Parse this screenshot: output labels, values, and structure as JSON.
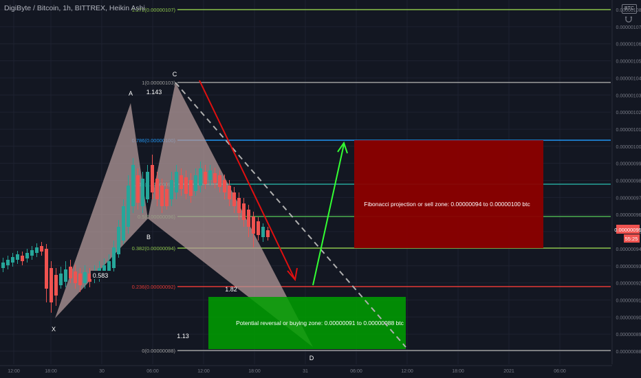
{
  "header": {
    "title": "DigiByte / Bitcoin, 1h, BITTREX, Heikin Ashi",
    "currency_badge": "BTC"
  },
  "colors": {
    "background": "#131722",
    "grid": "#1e2230",
    "axis_text": "#787b86",
    "candle_up": "#26a69a",
    "candle_down": "#ef5350",
    "harmonic_fill": "#b39a9a",
    "buy_zone": "#00a000",
    "sell_zone": "#8b0000"
  },
  "price_axis": {
    "ticks": [
      "0.00000108",
      "0.00000107",
      "0.00000106",
      "0.00000105",
      "0.00000104",
      "0.00000103",
      "0.00000102",
      "0.00000101",
      "0.00000100",
      "0.00000099",
      "0.00000098",
      "0.00000097",
      "0.00000096",
      "0.00000095",
      "0.00000094",
      "0.00000093",
      "0.00000092",
      "0.00000091",
      "0.00000090",
      "0.00000089",
      "0.00000088"
    ],
    "current_price": "0.00000095",
    "countdown": "55:25"
  },
  "time_axis": {
    "ticks": [
      "12:00",
      "18:00",
      "30",
      "06:00",
      "12:00",
      "18:00",
      "31",
      "06:00",
      "12:00",
      "18:00",
      "2021",
      "06:00"
    ]
  },
  "fib_levels": [
    {
      "label": "1.272(0.00000107)",
      "color": "#8bc34a"
    },
    {
      "label": "1(0.00000103)",
      "color": "#9e9e9e"
    },
    {
      "label": "0.786(0.00000100)",
      "color": "#2196f3"
    },
    {
      "label": "0.618(0.00000097)",
      "color": "#26a69a"
    },
    {
      "label": "0.5(0.00000096)",
      "color": "#4caf50"
    },
    {
      "label": "0.382(0.00000094)",
      "color": "#8bc34a"
    },
    {
      "label": "0.236(0.00000092)",
      "color": "#e53935"
    },
    {
      "label": "0(0.00000088)",
      "color": "#9e9e9e"
    }
  ],
  "pattern_points": {
    "X": "X",
    "A": "A",
    "B": "B",
    "C": "C",
    "D": "D"
  },
  "ratios": {
    "xa_b": "0.583",
    "ab_c": "1.143",
    "bc_d": "1.82",
    "xa_d": "1.13"
  },
  "zones": {
    "buy_text": "Potential reversal or buying zone: 0.00000091 to 0.00000088 btc",
    "sell_text": "Fibonacci projection or sell zone: 0.00000094 to 0.00000100 btc"
  }
}
